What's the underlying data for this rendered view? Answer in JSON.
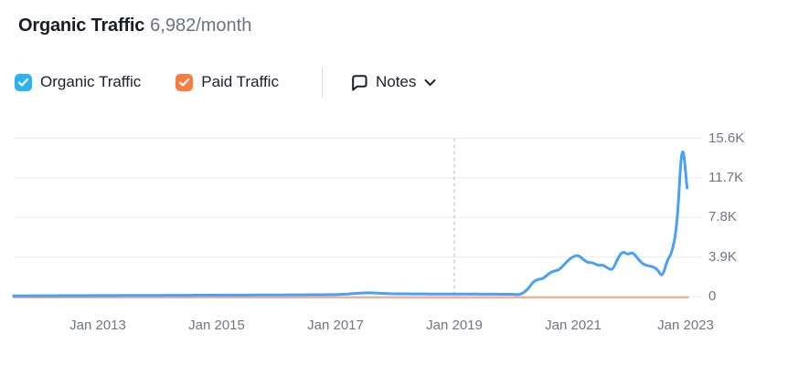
{
  "header": {
    "title": "Organic Traffic",
    "subtitle": "6,982/month"
  },
  "controls": {
    "organic": {
      "label": "Organic Traffic",
      "checked": true,
      "color": "#29b3f4"
    },
    "paid": {
      "label": "Paid Traffic",
      "checked": true,
      "color": "#f87b3f"
    },
    "notes": {
      "label": "Notes"
    }
  },
  "chart_data": {
    "type": "line",
    "title": "Organic Traffic 6,982/month",
    "grid": "horizontal",
    "legend_position": "top",
    "ylim": [
      0,
      15600
    ],
    "y_ticks": [
      {
        "label": "15.6K",
        "value": 15600
      },
      {
        "label": "11.7K",
        "value": 11700
      },
      {
        "label": "7.8K",
        "value": 7800
      },
      {
        "label": "3.9K",
        "value": 3900
      },
      {
        "label": "0",
        "value": 0
      }
    ],
    "x_ticks": [
      {
        "label": "Jan 2013",
        "date": "2013-01"
      },
      {
        "label": "Jan 2015",
        "date": "2015-01"
      },
      {
        "label": "Jan 2017",
        "date": "2017-01"
      },
      {
        "label": "Jan 2019",
        "date": "2019-01"
      },
      {
        "label": "Jan 2021",
        "date": "2021-01"
      },
      {
        "label": "Jan 2023",
        "date": "2023-01"
      }
    ],
    "annotation": {
      "type": "vertical-dashed-line",
      "date": "2019-01",
      "color": "#b5b9c0"
    },
    "series": [
      {
        "name": "Organic Traffic",
        "color": "#4aa0f2",
        "points": [
          [
            "2011-08",
            60
          ],
          [
            "2011-09",
            70
          ],
          [
            "2011-10",
            65
          ],
          [
            "2011-11",
            75
          ],
          [
            "2011-12",
            80
          ],
          [
            "2012-01",
            75
          ],
          [
            "2012-02",
            80
          ],
          [
            "2012-03",
            85
          ],
          [
            "2012-04",
            80
          ],
          [
            "2012-05",
            85
          ],
          [
            "2012-06",
            90
          ],
          [
            "2012-07",
            85
          ],
          [
            "2012-08",
            90
          ],
          [
            "2012-09",
            95
          ],
          [
            "2012-10",
            90
          ],
          [
            "2012-11",
            95
          ],
          [
            "2012-12",
            100
          ],
          [
            "2013-01",
            95
          ],
          [
            "2013-02",
            100
          ],
          [
            "2013-03",
            105
          ],
          [
            "2013-04",
            100
          ],
          [
            "2013-05",
            105
          ],
          [
            "2013-06",
            110
          ],
          [
            "2013-07",
            105
          ],
          [
            "2013-08",
            110
          ],
          [
            "2013-09",
            115
          ],
          [
            "2013-10",
            110
          ],
          [
            "2013-11",
            115
          ],
          [
            "2013-12",
            120
          ],
          [
            "2014-01",
            115
          ],
          [
            "2014-02",
            120
          ],
          [
            "2014-03",
            125
          ],
          [
            "2014-04",
            120
          ],
          [
            "2014-05",
            125
          ],
          [
            "2014-06",
            130
          ],
          [
            "2014-07",
            125
          ],
          [
            "2014-08",
            130
          ],
          [
            "2014-09",
            135
          ],
          [
            "2014-10",
            130
          ],
          [
            "2014-11",
            135
          ],
          [
            "2014-12",
            140
          ],
          [
            "2015-01",
            135
          ],
          [
            "2015-02",
            140
          ],
          [
            "2015-03",
            145
          ],
          [
            "2015-04",
            140
          ],
          [
            "2015-05",
            145
          ],
          [
            "2015-06",
            150
          ],
          [
            "2015-07",
            145
          ],
          [
            "2015-08",
            150
          ],
          [
            "2015-09",
            155
          ],
          [
            "2015-10",
            150
          ],
          [
            "2015-11",
            155
          ],
          [
            "2015-12",
            160
          ],
          [
            "2016-01",
            155
          ],
          [
            "2016-02",
            160
          ],
          [
            "2016-03",
            165
          ],
          [
            "2016-04",
            170
          ],
          [
            "2016-05",
            165
          ],
          [
            "2016-06",
            170
          ],
          [
            "2016-07",
            175
          ],
          [
            "2016-08",
            180
          ],
          [
            "2016-09",
            175
          ],
          [
            "2016-10",
            180
          ],
          [
            "2016-11",
            185
          ],
          [
            "2016-12",
            190
          ],
          [
            "2017-01",
            195
          ],
          [
            "2017-02",
            210
          ],
          [
            "2017-03",
            240
          ],
          [
            "2017-04",
            270
          ],
          [
            "2017-05",
            310
          ],
          [
            "2017-06",
            340
          ],
          [
            "2017-07",
            360
          ],
          [
            "2017-08",
            370
          ],
          [
            "2017-09",
            355
          ],
          [
            "2017-10",
            330
          ],
          [
            "2017-11",
            300
          ],
          [
            "2017-12",
            285
          ],
          [
            "2018-01",
            275
          ],
          [
            "2018-02",
            270
          ],
          [
            "2018-03",
            265
          ],
          [
            "2018-04",
            268
          ],
          [
            "2018-05",
            262
          ],
          [
            "2018-06",
            258
          ],
          [
            "2018-07",
            262
          ],
          [
            "2018-08",
            255
          ],
          [
            "2018-09",
            252
          ],
          [
            "2018-10",
            255
          ],
          [
            "2018-11",
            248
          ],
          [
            "2018-12",
            245
          ],
          [
            "2019-01",
            248
          ],
          [
            "2019-02",
            242
          ],
          [
            "2019-03",
            245
          ],
          [
            "2019-04",
            238
          ],
          [
            "2019-05",
            242
          ],
          [
            "2019-06",
            235
          ],
          [
            "2019-07",
            238
          ],
          [
            "2019-08",
            232
          ],
          [
            "2019-09",
            235
          ],
          [
            "2019-10",
            228
          ],
          [
            "2019-11",
            232
          ],
          [
            "2019-12",
            225
          ],
          [
            "2020-01",
            220
          ],
          [
            "2020-02",
            180
          ],
          [
            "2020-03",
            360
          ],
          [
            "2020-04",
            810
          ],
          [
            "2020-05",
            1520
          ],
          [
            "2020-06",
            1700
          ],
          [
            "2020-07",
            1790
          ],
          [
            "2020-08",
            2240
          ],
          [
            "2020-09",
            2510
          ],
          [
            "2020-10",
            2600
          ],
          [
            "2020-11",
            3050
          ],
          [
            "2020-12",
            3590
          ],
          [
            "2021-01",
            3950
          ],
          [
            "2021-02",
            4080
          ],
          [
            "2021-03",
            3680
          ],
          [
            "2021-04",
            3320
          ],
          [
            "2021-05",
            3360
          ],
          [
            "2021-06",
            3050
          ],
          [
            "2021-07",
            3140
          ],
          [
            "2021-08",
            2780
          ],
          [
            "2021-09",
            2600
          ],
          [
            "2021-10",
            3770
          ],
          [
            "2021-11",
            4480
          ],
          [
            "2021-12",
            4120
          ],
          [
            "2022-01",
            4390
          ],
          [
            "2022-02",
            3770
          ],
          [
            "2022-03",
            3230
          ],
          [
            "2022-04",
            3050
          ],
          [
            "2022-05",
            2960
          ],
          [
            "2022-06",
            2690
          ],
          [
            "2022-07",
            1880
          ],
          [
            "2022-08",
            3590
          ],
          [
            "2022-09",
            4350
          ],
          [
            "2022-10",
            7000
          ],
          [
            "2022-11",
            15900
          ],
          [
            "2022-12",
            10700
          ]
        ]
      },
      {
        "name": "Paid Traffic",
        "color": "#efae98",
        "constant_value": 0,
        "span": [
          "2011-08",
          "2022-12"
        ]
      }
    ]
  }
}
